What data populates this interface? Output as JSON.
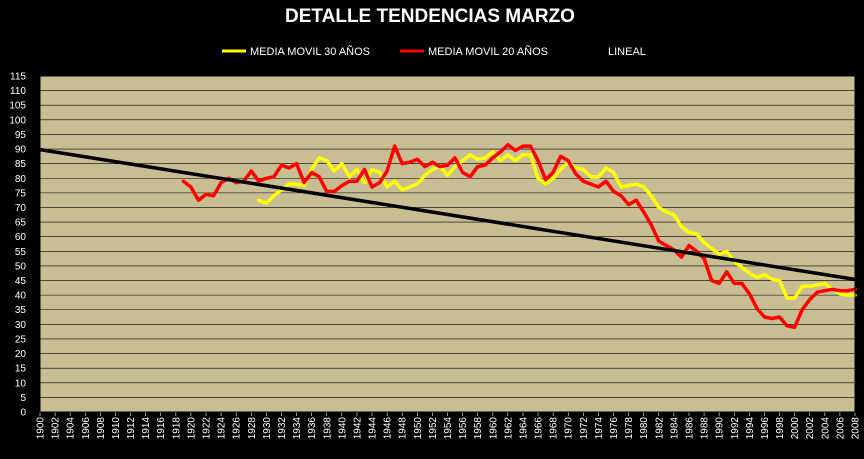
{
  "chart_data": {
    "type": "line",
    "title": "DETALLE TENDENCIAS MARZO",
    "xlabel": "",
    "ylabel": "",
    "xlim": [
      1900,
      2008
    ],
    "ylim": [
      0,
      115
    ],
    "y_ticks": [
      0,
      5,
      10,
      15,
      20,
      25,
      30,
      35,
      40,
      45,
      50,
      55,
      60,
      65,
      70,
      75,
      80,
      85,
      90,
      95,
      100,
      105,
      110,
      115
    ],
    "x_ticks": [
      1900,
      1902,
      1904,
      1906,
      1908,
      1910,
      1912,
      1914,
      1916,
      1918,
      1920,
      1922,
      1924,
      1926,
      1928,
      1930,
      1932,
      1934,
      1936,
      1938,
      1940,
      1942,
      1944,
      1946,
      1948,
      1950,
      1952,
      1954,
      1956,
      1958,
      1960,
      1962,
      1964,
      1966,
      1968,
      1970,
      1972,
      1974,
      1976,
      1978,
      1980,
      1982,
      1984,
      1986,
      1988,
      1990,
      1992,
      1994,
      1996,
      1998,
      2000,
      2002,
      2004,
      2006,
      2008
    ],
    "grid": true,
    "legend": "top-center",
    "plot_background": "#C9BD94",
    "series": [
      {
        "name": "MEDIA MOVIL 30 AÑOS",
        "color": "#FFFF00",
        "x": [
          1929,
          1930,
          1931,
          1932,
          1933,
          1934,
          1935,
          1936,
          1937,
          1938,
          1939,
          1940,
          1941,
          1942,
          1943,
          1944,
          1945,
          1946,
          1947,
          1948,
          1949,
          1950,
          1951,
          1952,
          1953,
          1954,
          1955,
          1956,
          1957,
          1958,
          1959,
          1960,
          1961,
          1962,
          1963,
          1964,
          1965,
          1966,
          1967,
          1968,
          1969,
          1970,
          1971,
          1972,
          1973,
          1974,
          1975,
          1976,
          1977,
          1978,
          1979,
          1980,
          1981,
          1982,
          1983,
          1984,
          1985,
          1986,
          1987,
          1988,
          1989,
          1990,
          1991,
          1992,
          1993,
          1994,
          1995,
          1996,
          1997,
          1998,
          1999,
          2000,
          2001,
          2002,
          2003,
          2004,
          2005,
          2006,
          2007,
          2008
        ],
        "y": [
          72.5,
          71.5,
          74,
          76,
          78,
          78,
          77.5,
          83,
          87,
          86,
          82.5,
          85,
          80.5,
          83,
          78.5,
          83,
          82,
          77,
          79,
          76,
          77,
          78,
          81,
          83,
          84,
          81,
          84,
          86,
          88,
          86.5,
          87,
          89,
          86,
          88,
          86,
          88,
          88,
          80,
          78,
          80,
          83,
          85.5,
          83.5,
          83,
          80.5,
          80.5,
          83.5,
          82,
          77,
          77.5,
          78,
          77,
          74,
          70,
          68.5,
          67.5,
          63.5,
          61.5,
          61,
          58,
          56,
          54,
          55,
          51.5,
          49.5,
          47.5,
          46,
          47,
          45.5,
          45,
          39,
          39,
          43,
          43,
          43.5,
          44,
          42,
          40.5,
          40,
          40
        ]
      },
      {
        "name": "MEDIA MOVIL 20 AÑOS",
        "color": "#FF0000",
        "x": [
          1919,
          1920,
          1921,
          1922,
          1923,
          1924,
          1925,
          1926,
          1927,
          1928,
          1929,
          1930,
          1931,
          1932,
          1933,
          1934,
          1935,
          1936,
          1937,
          1938,
          1939,
          1940,
          1941,
          1942,
          1943,
          1944,
          1945,
          1946,
          1947,
          1948,
          1949,
          1950,
          1951,
          1952,
          1953,
          1954,
          1955,
          1956,
          1957,
          1958,
          1959,
          1960,
          1961,
          1962,
          1963,
          1964,
          1965,
          1966,
          1967,
          1968,
          1969,
          1970,
          1971,
          1972,
          1973,
          1974,
          1975,
          1976,
          1977,
          1978,
          1979,
          1980,
          1981,
          1982,
          1983,
          1984,
          1985,
          1986,
          1987,
          1988,
          1989,
          1990,
          1991,
          1992,
          1993,
          1994,
          1995,
          1996,
          1997,
          1998,
          1999,
          2000,
          2001,
          2002,
          2003,
          2004,
          2005,
          2006,
          2007,
          2008
        ],
        "y": [
          79,
          77,
          72.5,
          74.5,
          74,
          78.5,
          80,
          78.5,
          79,
          82.5,
          79,
          80,
          80.5,
          84.5,
          83.5,
          85,
          78.5,
          82,
          80.5,
          75.5,
          75.5,
          77.5,
          79,
          79,
          83,
          77,
          78.5,
          82.5,
          91,
          85,
          85.5,
          86.5,
          84,
          85.5,
          84,
          84.5,
          87,
          82,
          80.5,
          84,
          84.5,
          87,
          89,
          91.5,
          89.5,
          91,
          91,
          86,
          79.5,
          82,
          87.5,
          86,
          81.5,
          79,
          78,
          77,
          79,
          75.5,
          74,
          71,
          72.5,
          68.5,
          64,
          58.5,
          57,
          55.5,
          53,
          57,
          55,
          52.5,
          45,
          44,
          48,
          44,
          44,
          40.5,
          35.5,
          32.5,
          32,
          32.5,
          29.5,
          29,
          35,
          38.5,
          41,
          41.5,
          42,
          41.5,
          41.5,
          42
        ]
      },
      {
        "name": "LINEAL",
        "color": "#000000",
        "x": [
          1900,
          2008
        ],
        "y": [
          89.8,
          45.4
        ]
      }
    ]
  }
}
